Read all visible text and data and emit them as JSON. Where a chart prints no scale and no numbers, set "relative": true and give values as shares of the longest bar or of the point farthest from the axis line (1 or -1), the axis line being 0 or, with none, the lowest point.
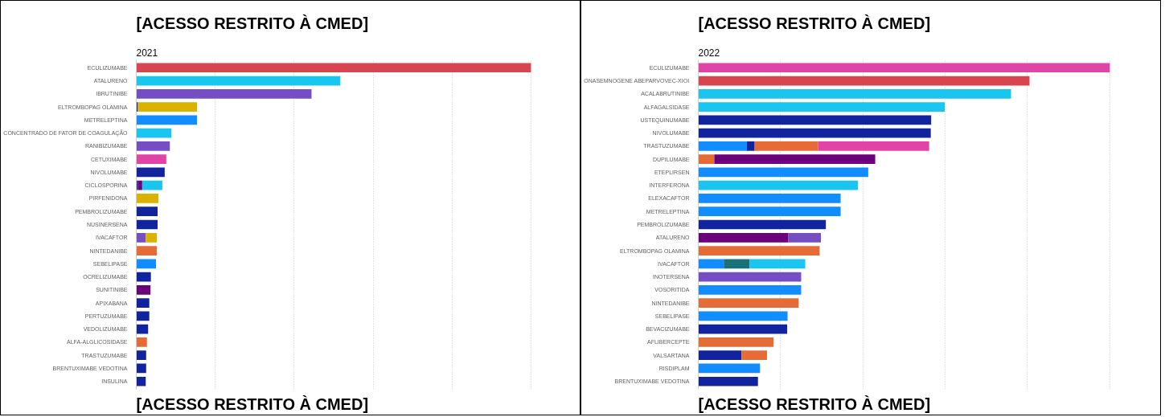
{
  "chart_data": [
    {
      "type": "bar",
      "orientation": "horizontal",
      "stacked": true,
      "relative": true,
      "grid": "x",
      "title": "[ACESSO RESTRITO À CMED]",
      "subtitle": "2021",
      "annotations": [
        "[ACESSO RESTRITO À CMED]"
      ],
      "categories": [
        "ECULIZUMABE",
        "ATALURENO",
        "IBRUTINIBE",
        "ELTROMBOPAG OLAMINA",
        "METRELEPTINA",
        "CONCENTRADO DE FATOR DE COAGULAÇÃO",
        "RANIBIZUMABE",
        "CETUXIMABE",
        "NIVOLUMABE",
        "CICLOSPORINA",
        "PIRFENIDONA",
        "PEMBROLIZUMABE",
        "NUSINERSENA",
        "IVACAFTOR",
        "NINTEDANIBE",
        "SEBELIPASE",
        "OCRELIZUMABE",
        "SUNITINIBE",
        "APIXABANA",
        "PERTUZUMABE",
        "VEDOLIZUMABE",
        "ALFA-ALGLICOSIDASE",
        "TRASTUZUMABE",
        "BRENTUXIMABE VEDOTINA",
        "INSULINA"
      ],
      "series": [
        {
          "values": [
            1,
            0.517,
            0.444,
            0.004,
            0.154,
            0.089,
            0.085,
            0.076,
            0.072,
            0.004,
            0.056,
            0.054,
            0.054,
            0.024,
            0.052,
            0.05,
            0.037,
            0.036,
            0.033,
            0.033,
            0.03,
            0.027,
            0.025,
            0.025,
            0.024
          ],
          "colors": [
            "#d64550",
            "#1ac6f0",
            "#744ec2",
            "#12239e",
            "#118dff",
            "#1ac6f0",
            "#744ec2",
            "#e044a7",
            "#12239e",
            "#12239e",
            "#d9b300",
            "#12239e",
            "#12239e",
            "#744ec2",
            "#e66c37",
            "#118dff",
            "#12239e",
            "#6b007b",
            "#12239e",
            "#12239e",
            "#12239e",
            "#e66c37",
            "#12239e",
            "#12239e",
            "#12239e"
          ]
        },
        {
          "values": [
            null,
            null,
            null,
            0.15,
            null,
            null,
            null,
            null,
            null,
            0.011,
            null,
            null,
            null,
            0.028,
            null,
            null,
            null,
            null,
            null,
            null,
            null,
            null,
            null,
            null,
            null
          ],
          "colors": [
            null,
            null,
            null,
            "#d9b300",
            null,
            null,
            null,
            null,
            null,
            "#6b007b",
            null,
            null,
            null,
            "#d9b300",
            null,
            null,
            null,
            null,
            null,
            null,
            null,
            null,
            null,
            null,
            null
          ]
        },
        {
          "values": [
            null,
            null,
            null,
            null,
            null,
            null,
            null,
            null,
            null,
            0.051,
            null,
            null,
            null,
            null,
            null,
            null,
            null,
            null,
            null,
            null,
            null,
            null,
            null,
            null,
            null
          ],
          "colors": [
            null,
            null,
            null,
            null,
            null,
            null,
            null,
            null,
            null,
            "#1ac6f0",
            null,
            null,
            null,
            null,
            null,
            null,
            null,
            null,
            null,
            null,
            null,
            null,
            null,
            null,
            null
          ]
        }
      ]
    },
    {
      "type": "bar",
      "orientation": "horizontal",
      "stacked": true,
      "relative": true,
      "grid": "x",
      "title": "[ACESSO RESTRITO À CMED]",
      "subtitle": "2022",
      "annotations": [
        "[ACESSO RESTRITO À CMED]"
      ],
      "categories": [
        "ECULIZUMABE",
        "ONASEMNOGENE ABEPARVOVEC-XIOI",
        "ACALABRUTINIBE",
        "ALFAGALSIDASE",
        "USTEQUINUMABE",
        "NIVOLUMABE",
        "TRASTUZUMABE",
        "DUPILUMABE",
        "ETEPLIRSEN",
        "INTERFERONA",
        "ELEXACAFTOR",
        "METRELEPTINA",
        "PEMBROLIZUMABE",
        "ATALURENO",
        "ELTROMBOPAG OLAMINA",
        "IVACAFTOR",
        "INOTERSENA",
        "VOSORITIDA",
        "NINTEDANIBE",
        "SEBELIPASE",
        "BEVACIZUMABE",
        "AFLIBERCEPTE",
        "VALSARTANA",
        "RISDIPLAM",
        "BRENTUXIMABE VEDOTINA"
      ],
      "series": [
        {
          "values": [
            1,
            0.805,
            0.76,
            0.599,
            0.566,
            0.565,
            0.118,
            0.039,
            0.413,
            0.388,
            0.346,
            0.346,
            0.31,
            0.219,
            0.295,
            0.062,
            0.25,
            0.25,
            0.244,
            0.217,
            0.216,
            0.183,
            0.105,
            0.15,
            0.145
          ],
          "colors": [
            "#e044a7",
            "#d64550",
            "#1ac6f0",
            "#1ac6f0",
            "#12239e",
            "#12239e",
            "#118dff",
            "#e66c37",
            "#118dff",
            "#1ac6f0",
            "#118dff",
            "#118dff",
            "#12239e",
            "#6b007b",
            "#e66c37",
            "#118dff",
            "#744ec2",
            "#118dff",
            "#e66c37",
            "#118dff",
            "#12239e",
            "#e66c37",
            "#12239e",
            "#118dff",
            "#12239e"
          ]
        },
        {
          "values": [
            null,
            null,
            null,
            null,
            null,
            null,
            0.019,
            0.391,
            null,
            null,
            null,
            null,
            null,
            0.079,
            null,
            0.063,
            null,
            null,
            null,
            null,
            null,
            null,
            0.062,
            null,
            null
          ],
          "colors": [
            null,
            null,
            null,
            null,
            null,
            null,
            "#12239e",
            "#6b007b",
            null,
            null,
            null,
            null,
            null,
            "#744ec2",
            null,
            "#197278",
            null,
            null,
            null,
            null,
            null,
            null,
            "#e66c37",
            null,
            null
          ]
        },
        {
          "values": [
            null,
            null,
            null,
            null,
            null,
            null,
            0.154,
            null,
            null,
            null,
            null,
            null,
            null,
            null,
            null,
            0.135,
            null,
            null,
            null,
            null,
            null,
            null,
            null,
            null,
            null
          ],
          "colors": [
            null,
            null,
            null,
            null,
            null,
            null,
            "#e66c37",
            null,
            null,
            null,
            null,
            null,
            null,
            null,
            null,
            "#1ac6f0",
            null,
            null,
            null,
            null,
            null,
            null,
            null,
            null,
            null
          ]
        },
        {
          "values": [
            null,
            null,
            null,
            null,
            null,
            null,
            0.27,
            null,
            null,
            null,
            null,
            null,
            null,
            null,
            null,
            null,
            null,
            null,
            null,
            null,
            null,
            null,
            null,
            null,
            null
          ],
          "colors": [
            null,
            null,
            null,
            null,
            null,
            null,
            "#e044a7",
            null,
            null,
            null,
            null,
            null,
            null,
            null,
            null,
            null,
            null,
            null,
            null,
            null,
            null,
            null,
            null,
            null,
            null
          ]
        }
      ]
    }
  ]
}
